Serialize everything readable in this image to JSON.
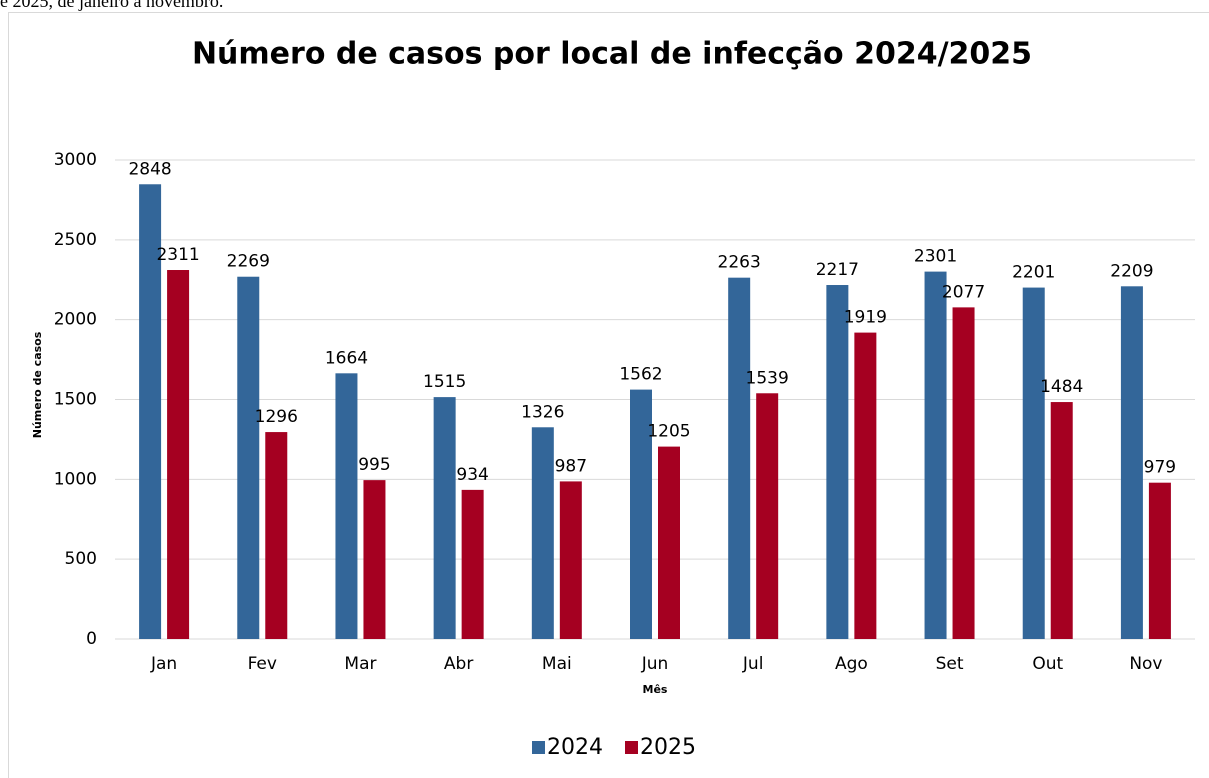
{
  "document_text": "e 2025, de janeiro a novembro.",
  "chart_data": {
    "type": "bar",
    "title": "Número de casos por local de infecção 2024/2025",
    "x_label": "Mês",
    "y_label": "Número de casos",
    "categories": [
      "Jan",
      "Fev",
      "Mar",
      "Abr",
      "Mai",
      "Jun",
      "Jul",
      "Ago",
      "Set",
      "Out",
      "Nov"
    ],
    "series": [
      {
        "name": "2024",
        "color": "#336699",
        "values": [
          2848,
          2269,
          1664,
          1515,
          1326,
          1562,
          2263,
          2217,
          2301,
          2201,
          2209
        ]
      },
      {
        "name": "2025",
        "color": "#a50021",
        "values": [
          2311,
          1296,
          995,
          934,
          987,
          1205,
          1539,
          1919,
          2077,
          1484,
          979
        ]
      }
    ],
    "ylim": [
      0,
      3000
    ],
    "yticks": [
      0,
      500,
      1000,
      1500,
      2000,
      2500,
      3000
    ],
    "grid": true,
    "legend": "bottom"
  }
}
